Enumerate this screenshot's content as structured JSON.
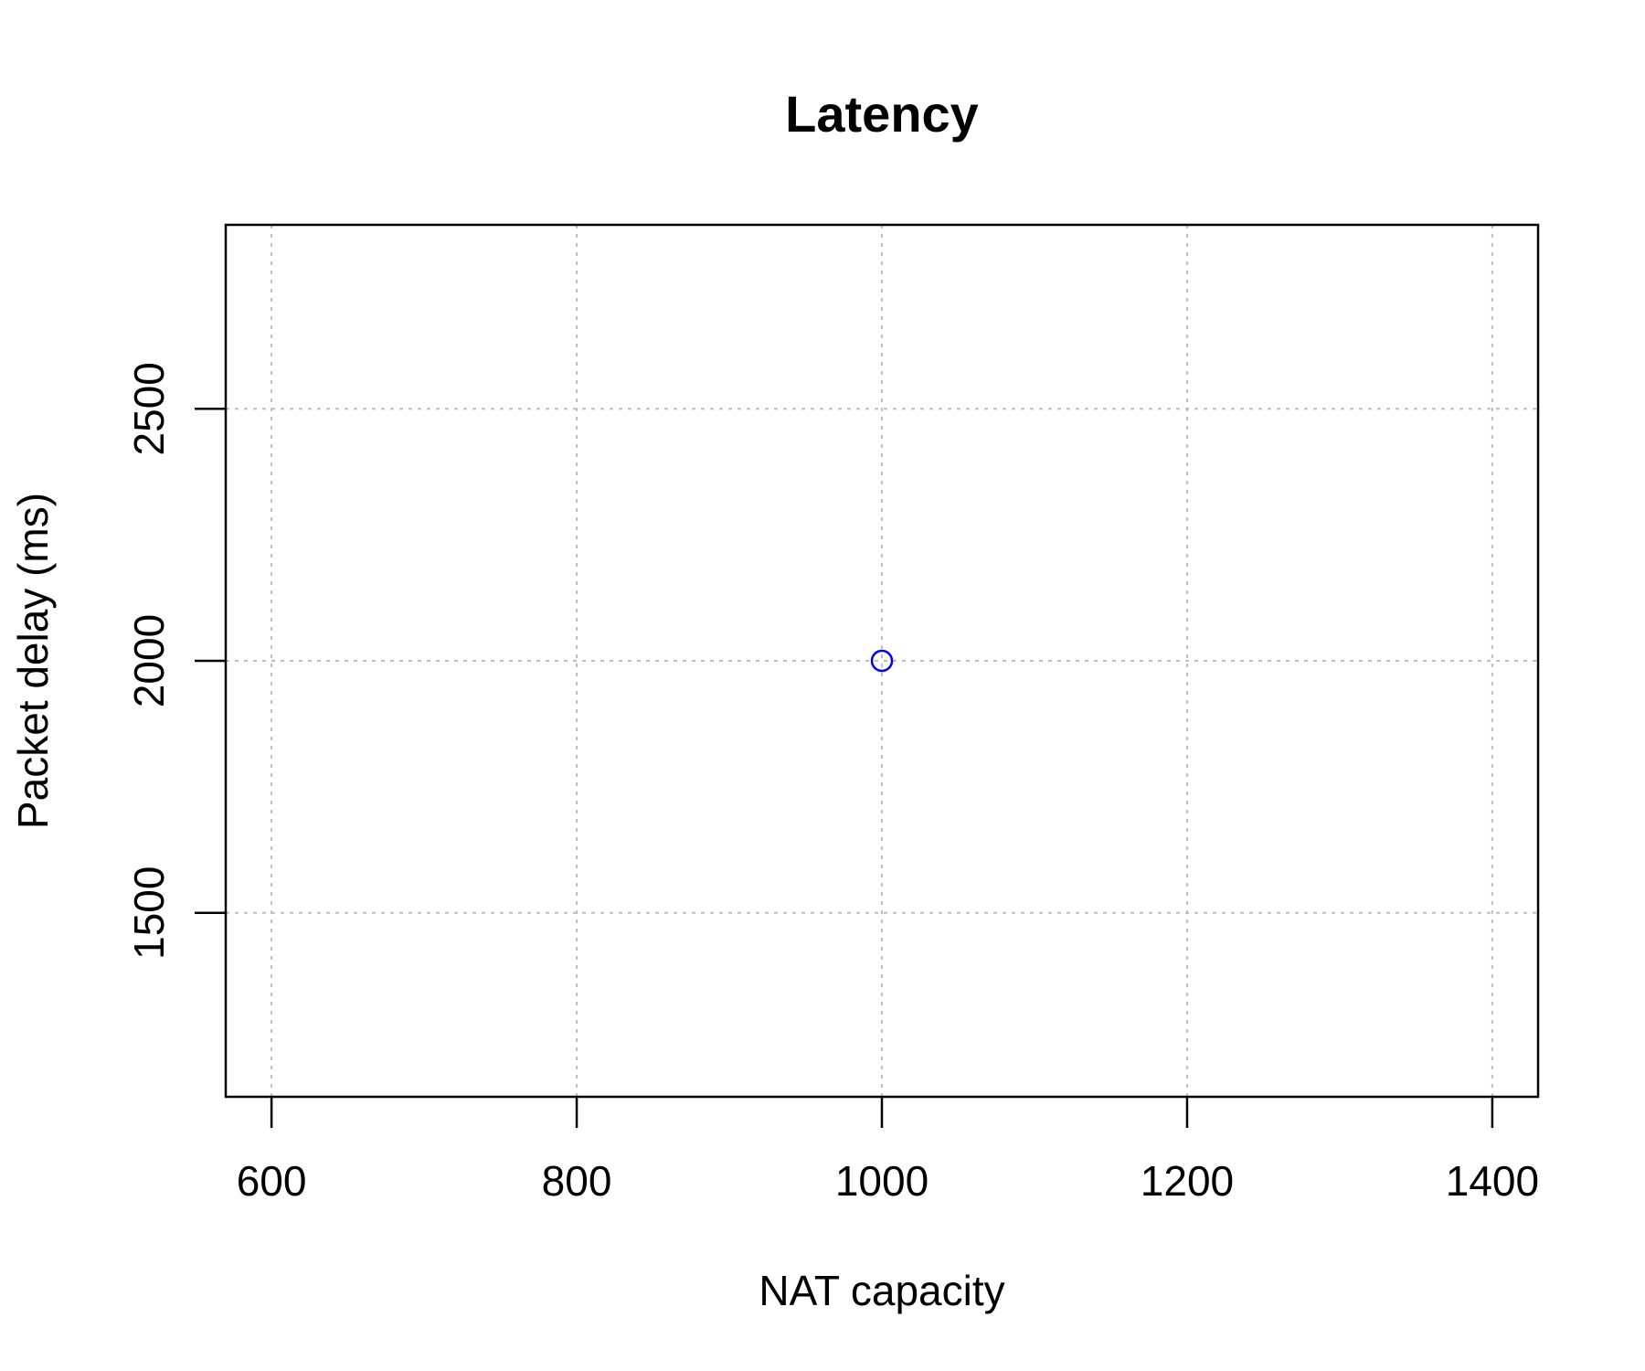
{
  "chart_data": {
    "type": "scatter",
    "title": "Latency",
    "xlabel": "NAT capacity",
    "ylabel": "Packet delay (ms)",
    "xlim": [
      570,
      1430
    ],
    "ylim": [
      1135,
      2865
    ],
    "x_ticks": [
      600,
      800,
      1000,
      1200,
      1400
    ],
    "y_ticks": [
      1500,
      2000,
      2500
    ],
    "grid": true,
    "legend": "none",
    "series": [
      {
        "color": "#0000ff",
        "marker": "open-circle",
        "points": [
          {
            "x": 1000,
            "y": 2000
          }
        ]
      }
    ]
  },
  "colors": {
    "axis": "#000000",
    "grid": "#bebebe",
    "point": "#0000ff"
  }
}
